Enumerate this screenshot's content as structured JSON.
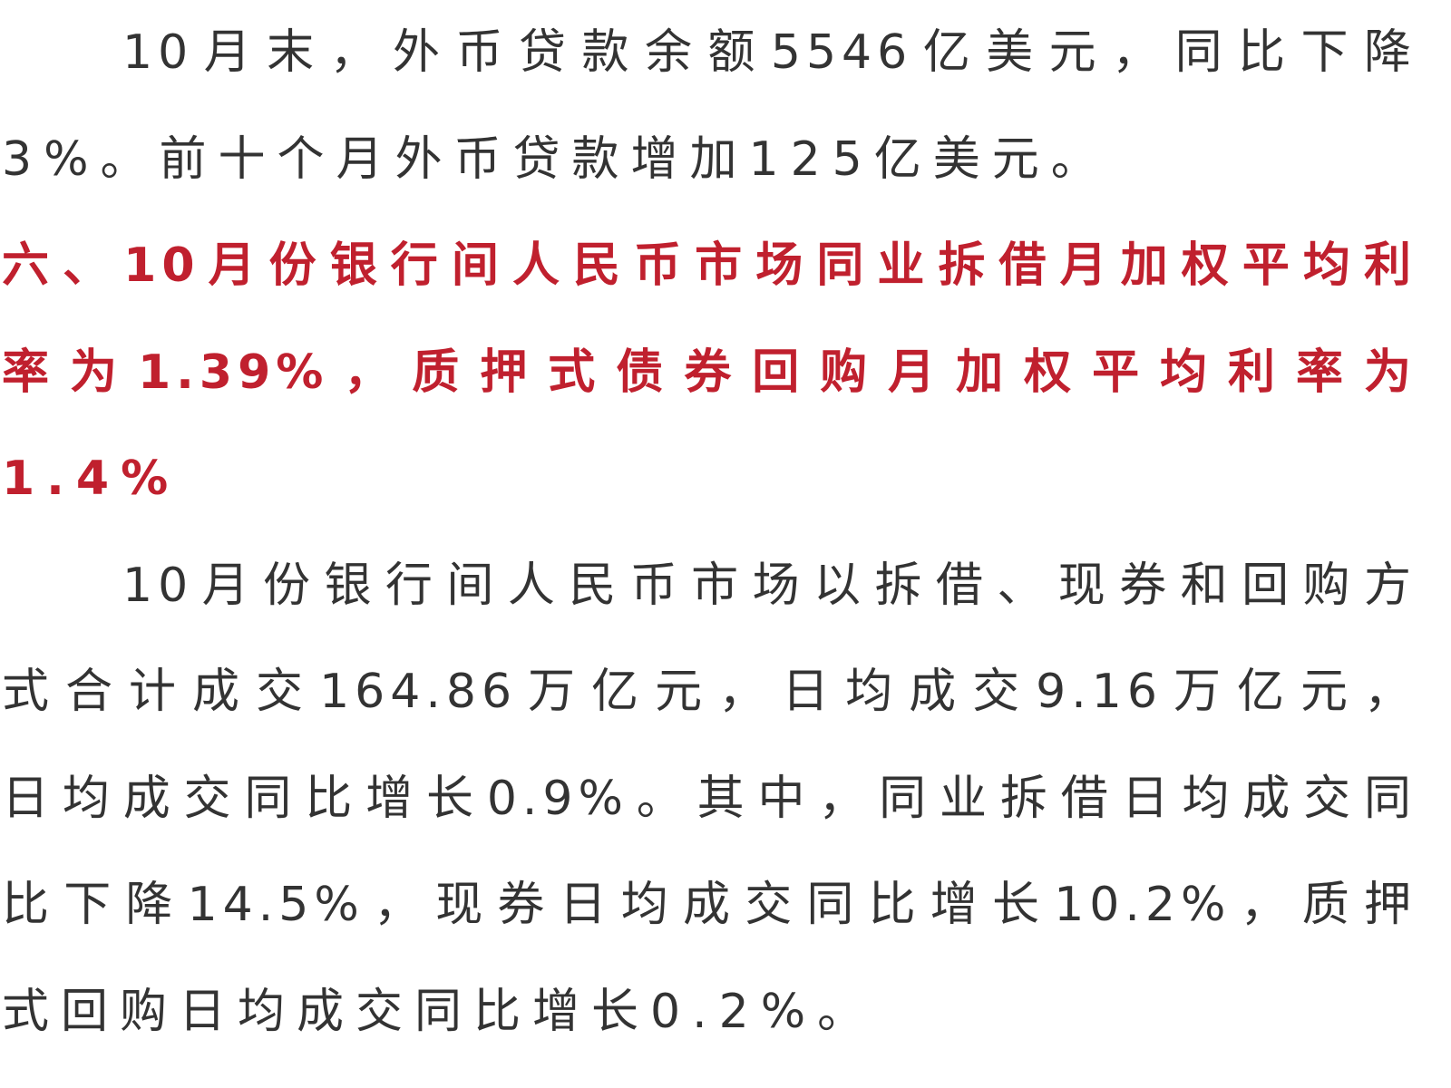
{
  "paragraphs": [
    {
      "type": "body",
      "lines": [
        "10月末，外币贷款余额5546亿美元，同比下降",
        "3%。前十个月外币贷款增加125亿美元。"
      ]
    },
    {
      "type": "heading",
      "color": "#c0202e",
      "lines": [
        "六、10月份银行间人民币市场同业拆借月加权平均利",
        "率为1.39%，质押式债券回购月加权平均利率为",
        "1.4%"
      ]
    },
    {
      "type": "body",
      "lines": [
        "10月份银行间人民币市场以拆借、现券和回购方",
        "式合计成交164.86万亿元，日均成交9.16万亿元，",
        "日均成交同比增长0.9%。其中，同业拆借日均成交同",
        "比下降14.5%，现券日均成交同比增长10.2%，质押",
        "式回购日均成交同比增长0.2%。"
      ]
    }
  ]
}
